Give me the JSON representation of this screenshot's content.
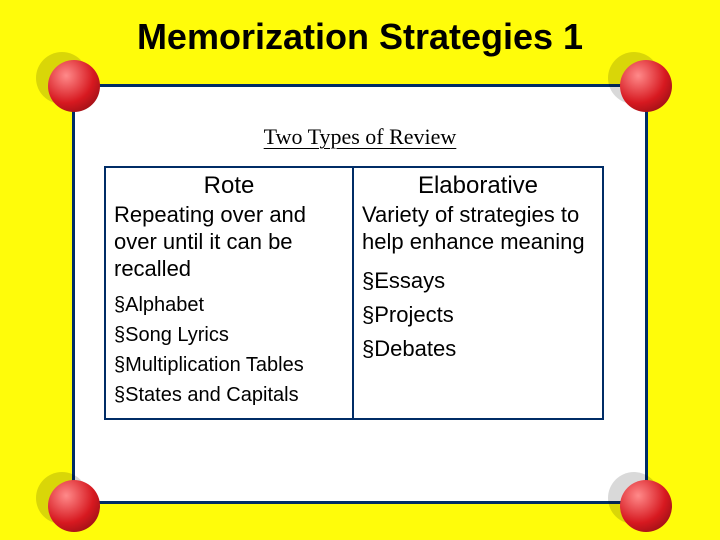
{
  "title": "Memorization Strategies 1",
  "subtitle": "Two Types of Review",
  "background_color": "#fffc0a",
  "frame_border_color": "#002c66",
  "dot_color": "#d71920",
  "columns": [
    {
      "heading": "Rote",
      "description": "Repeating over and over until it can be recalled",
      "items": [
        "Alphabet",
        "Song Lyrics",
        "Multiplication Tables",
        "States and Capitals"
      ]
    },
    {
      "heading": "Elaborative",
      "description": "Variety of strategies to help enhance meaning",
      "items": [
        "Essays",
        "Projects",
        "Debates"
      ]
    }
  ],
  "title_fontsize": 36,
  "subtitle_fontsize": 22,
  "heading_fontsize": 24,
  "desc_fontsize": 22,
  "bullet_left_fontsize": 20,
  "bullet_right_fontsize": 22
}
